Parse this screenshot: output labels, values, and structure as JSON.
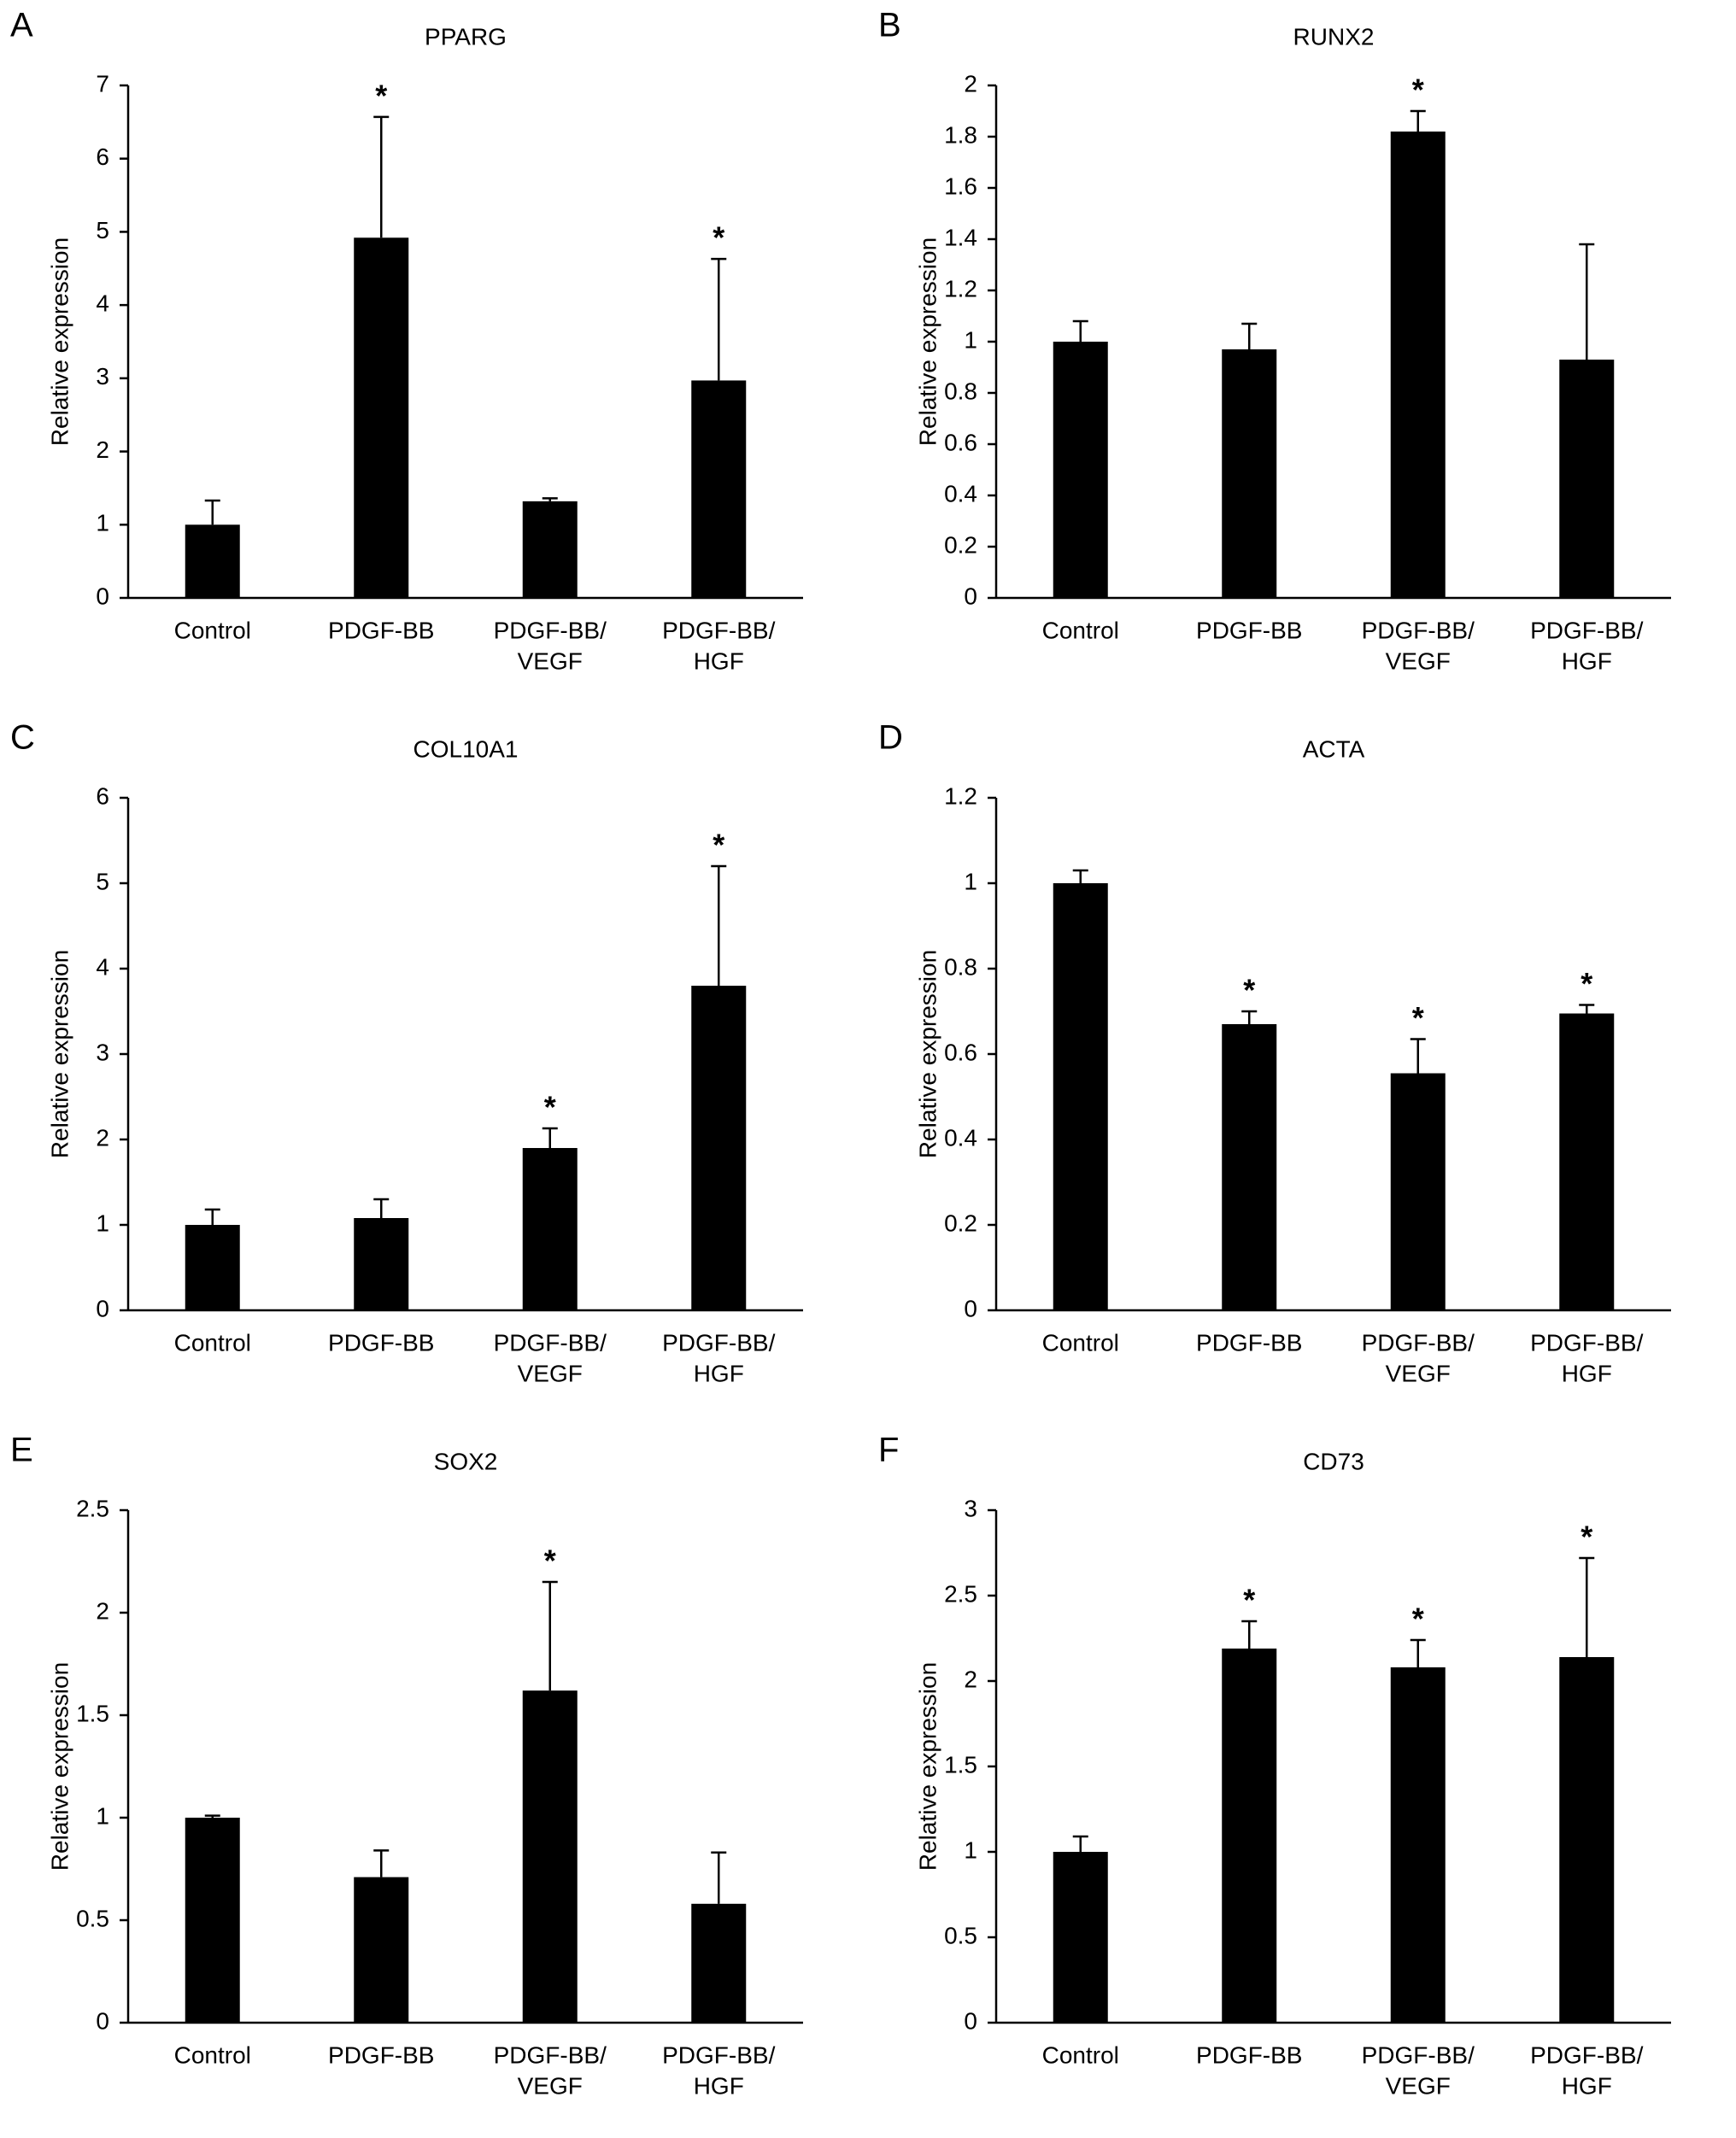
{
  "chart_data": [
    {
      "type": "bar",
      "panel": "A",
      "title": "PPARG",
      "ylabel": "Relative expression",
      "categories": [
        [
          "Control"
        ],
        [
          "PDGF-BB"
        ],
        [
          "PDGF-BB/",
          "VEGF"
        ],
        [
          "PDGF-BB/",
          "HGF"
        ]
      ],
      "values": [
        1.0,
        4.92,
        1.32,
        2.97
      ],
      "errors": [
        0.33,
        1.65,
        0.04,
        1.66
      ],
      "significance": [
        null,
        "*",
        null,
        "*"
      ],
      "color": "#000000",
      "ylim": [
        0,
        7
      ],
      "yticks": [
        0,
        1,
        2,
        3,
        4,
        5,
        6,
        7
      ]
    },
    {
      "type": "bar",
      "panel": "B",
      "title": "RUNX2",
      "ylabel": "Relative expression",
      "categories": [
        [
          "Control"
        ],
        [
          "PDGF-BB"
        ],
        [
          "PDGF-BB/",
          "VEGF"
        ],
        [
          "PDGF-BB/",
          "HGF"
        ]
      ],
      "values": [
        1.0,
        0.97,
        1.82,
        0.93
      ],
      "errors": [
        0.08,
        0.1,
        0.08,
        0.45
      ],
      "significance": [
        null,
        null,
        "*",
        null
      ],
      "color": "#000000",
      "ylim": [
        0,
        2
      ],
      "yticks": [
        0,
        0.2,
        0.4,
        0.6,
        0.8,
        1,
        1.2,
        1.4,
        1.6,
        1.8,
        2
      ]
    },
    {
      "type": "bar",
      "panel": "C",
      "title": "COL10A1",
      "ylabel": "Relative expression",
      "categories": [
        [
          "Control"
        ],
        [
          "PDGF-BB"
        ],
        [
          "PDGF-BB/",
          "VEGF"
        ],
        [
          "PDGF-BB/",
          "HGF"
        ]
      ],
      "values": [
        1.0,
        1.08,
        1.9,
        3.8
      ],
      "errors": [
        0.18,
        0.22,
        0.23,
        1.4
      ],
      "significance": [
        null,
        null,
        "*",
        "*"
      ],
      "color": "#000000",
      "ylim": [
        0,
        6
      ],
      "yticks": [
        0,
        1,
        2,
        3,
        4,
        5,
        6
      ]
    },
    {
      "type": "bar",
      "panel": "D",
      "title": "ACTA",
      "ylabel": "Relative expression",
      "categories": [
        [
          "Control"
        ],
        [
          "PDGF-BB"
        ],
        [
          "PDGF-BB/",
          "VEGF"
        ],
        [
          "PDGF-BB/",
          "HGF"
        ]
      ],
      "values": [
        1.0,
        0.67,
        0.555,
        0.695
      ],
      "errors": [
        0.03,
        0.03,
        0.08,
        0.02
      ],
      "significance": [
        null,
        "*",
        "*",
        "*"
      ],
      "color": "#000000",
      "ylim": [
        0,
        1.2
      ],
      "yticks": [
        0,
        0.2,
        0.4,
        0.6,
        0.8,
        1,
        1.2
      ]
    },
    {
      "type": "bar",
      "panel": "E",
      "title": "SOX2",
      "ylabel": "Relative expression",
      "categories": [
        [
          "Control"
        ],
        [
          "PDGF-BB"
        ],
        [
          "PDGF-BB/",
          "VEGF"
        ],
        [
          "PDGF-BB/",
          "HGF"
        ]
      ],
      "values": [
        1.0,
        0.71,
        1.62,
        0.58
      ],
      "errors": [
        0.01,
        0.13,
        0.53,
        0.25
      ],
      "significance": [
        null,
        null,
        "*",
        null
      ],
      "color": "#000000",
      "ylim": [
        0,
        2.5
      ],
      "yticks": [
        0,
        0.5,
        1,
        1.5,
        2,
        2.5
      ]
    },
    {
      "type": "bar",
      "panel": "F",
      "title": "CD73",
      "ylabel": "Relative expression",
      "categories": [
        [
          "Control"
        ],
        [
          "PDGF-BB"
        ],
        [
          "PDGF-BB/",
          "VEGF"
        ],
        [
          "PDGF-BB/",
          "HGF"
        ]
      ],
      "values": [
        1.0,
        2.19,
        2.08,
        2.14
      ],
      "errors": [
        0.09,
        0.16,
        0.16,
        0.58
      ],
      "significance": [
        null,
        "*",
        "*",
        "*"
      ],
      "color": "#000000",
      "ylim": [
        0,
        3
      ],
      "yticks": [
        0,
        0.5,
        1,
        1.5,
        2,
        2.5,
        3
      ]
    }
  ]
}
